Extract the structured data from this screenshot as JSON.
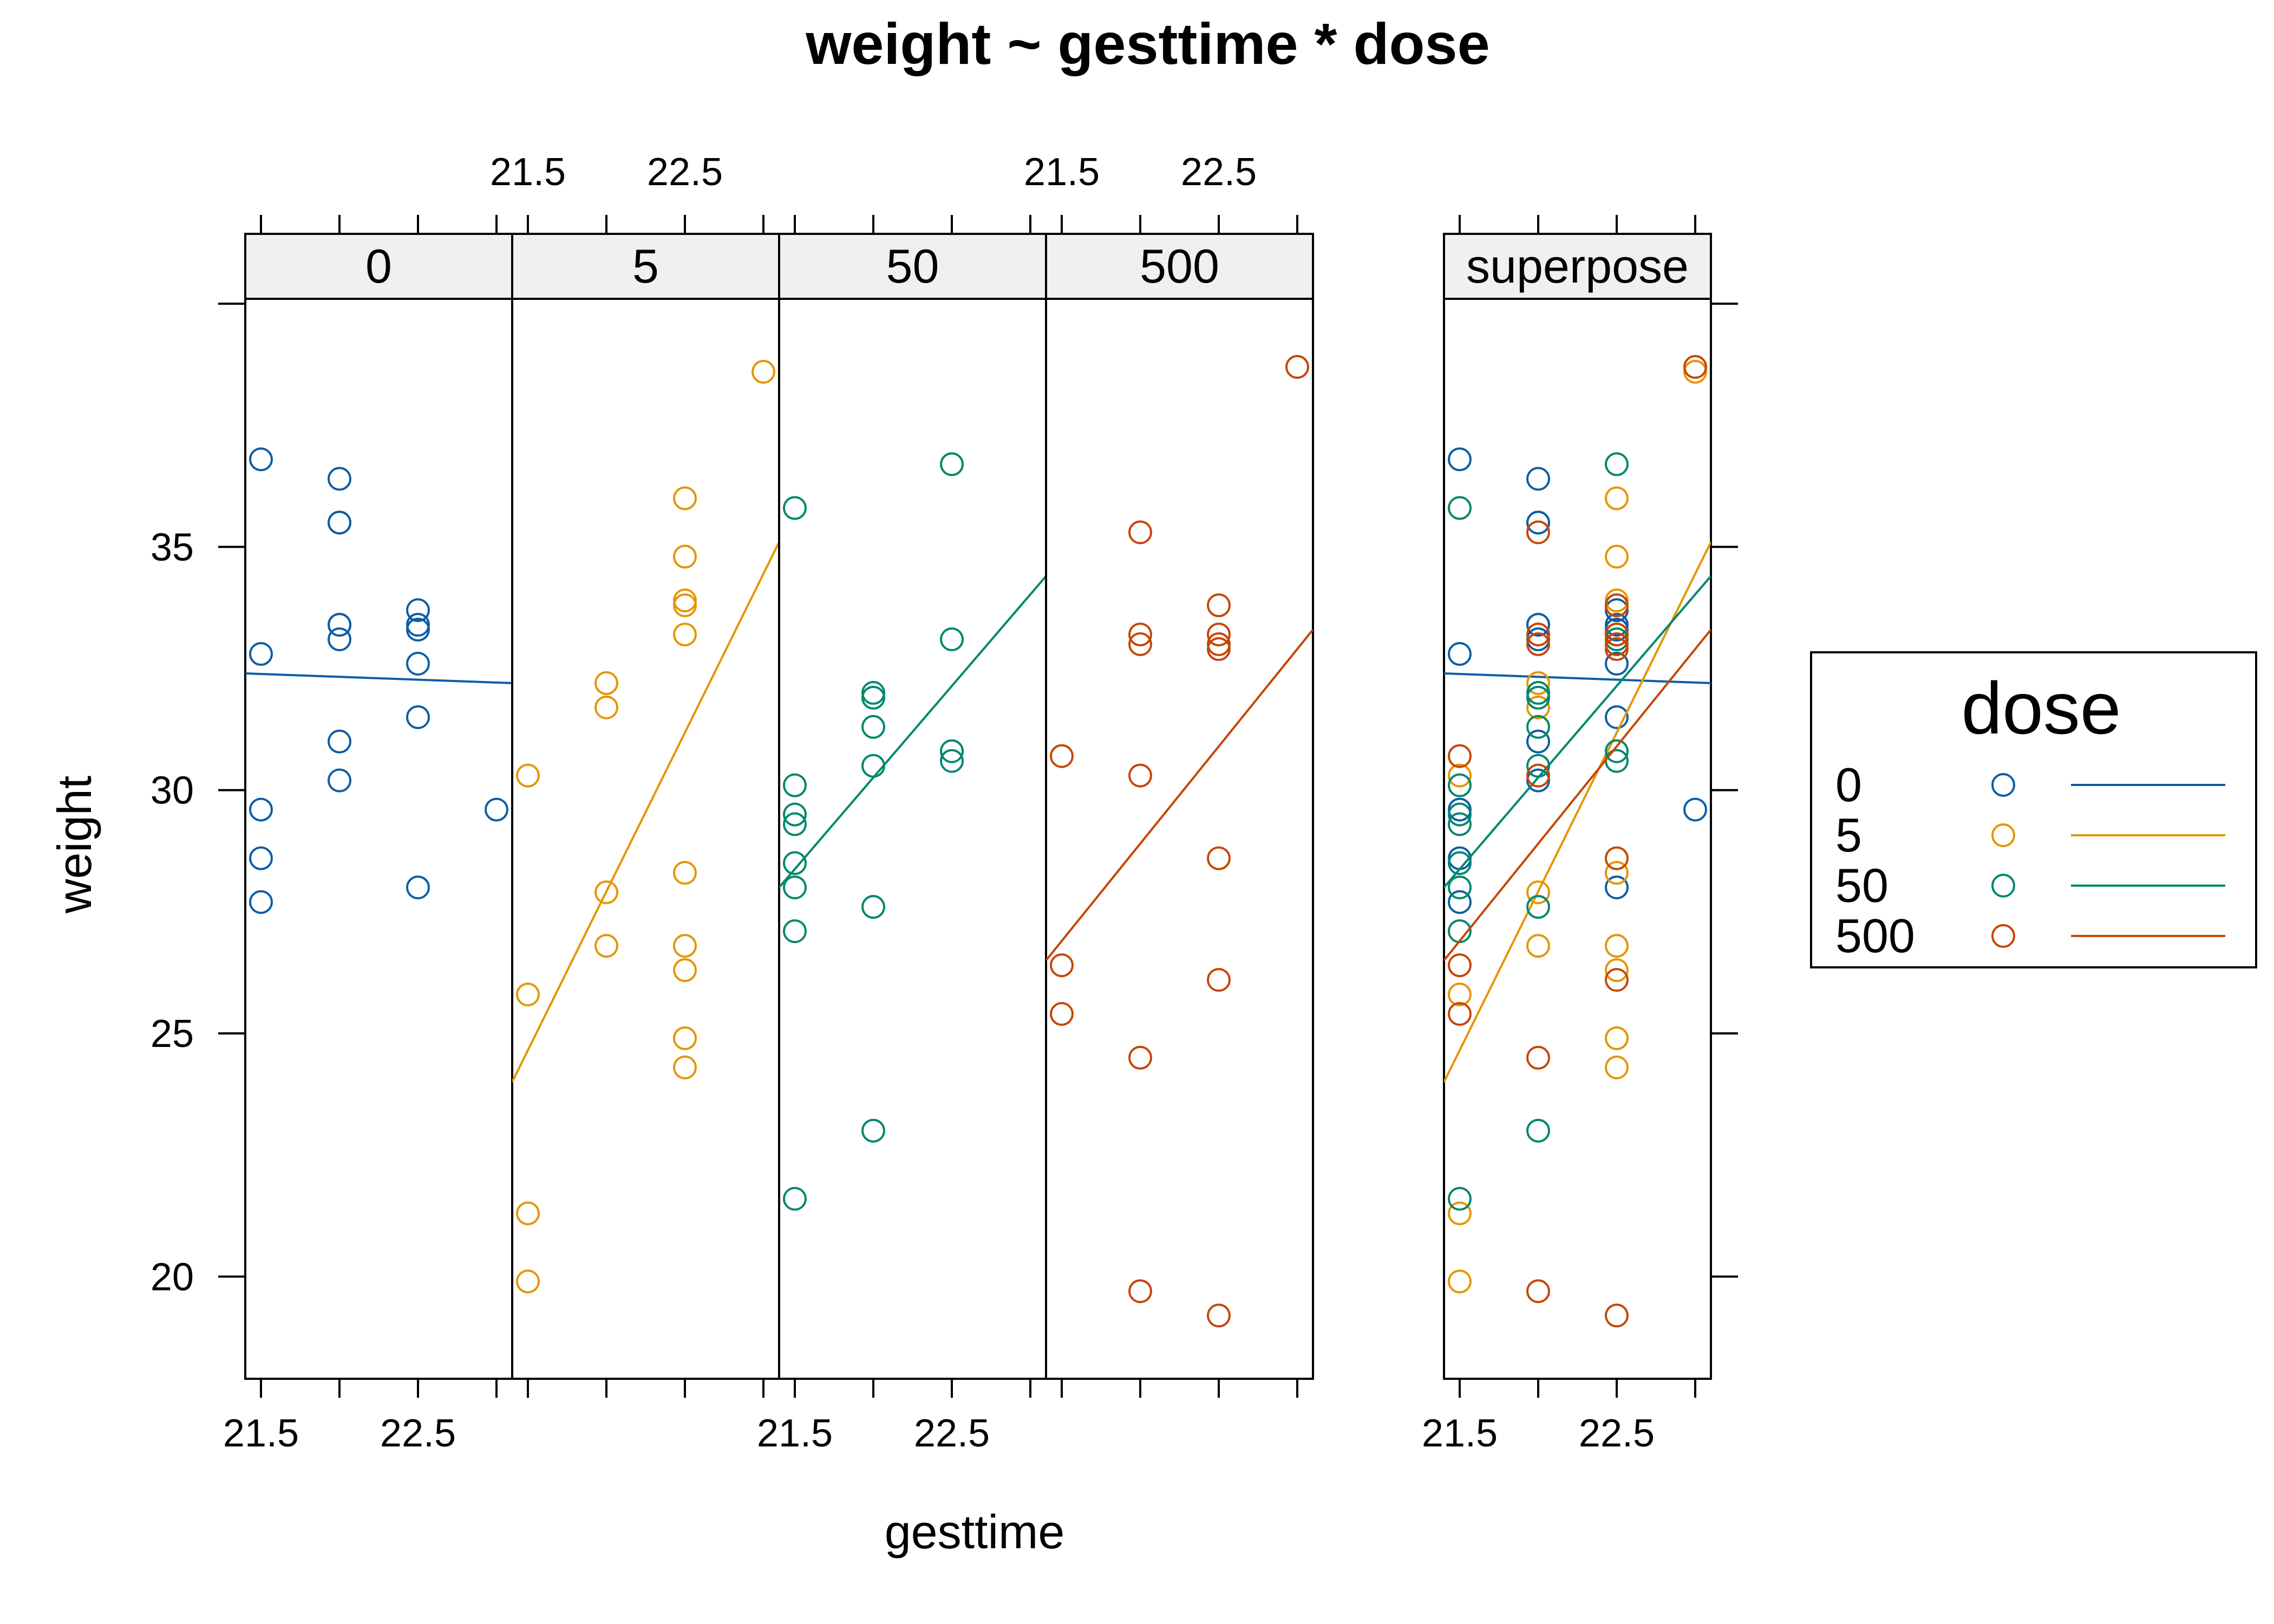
{
  "chart_data": {
    "type": "scatter",
    "title": "weight ~ gesttime * dose",
    "xlabel": "gesttime",
    "ylabel": "weight",
    "xlim": [
      21.4,
      23.1
    ],
    "ylim": [
      17.9,
      40.1
    ],
    "x_ticks": [
      21.5,
      22,
      22.5,
      23
    ],
    "x_tick_labels": [
      "21.5",
      "22.5"
    ],
    "y_ticks": [
      20,
      25,
      30,
      35,
      40
    ],
    "y_tick_labels": [
      "20",
      "25",
      "30",
      "35"
    ],
    "panels": [
      "0",
      "5",
      "50",
      "500",
      "superpose"
    ],
    "legend": {
      "title": "dose",
      "position": "right"
    },
    "series": [
      {
        "name": "0",
        "color": "#0c5da5",
        "fit_line": [
          [
            21.4,
            32.4
          ],
          [
            23.1,
            32.2
          ]
        ],
        "points": [
          [
            21.5,
            36.8
          ],
          [
            21.5,
            32.8
          ],
          [
            21.5,
            29.6
          ],
          [
            21.5,
            28.6
          ],
          [
            21.5,
            27.7
          ],
          [
            22.0,
            36.4
          ],
          [
            22.0,
            35.5
          ],
          [
            22.0,
            35.5
          ],
          [
            22.0,
            33.4
          ],
          [
            22.0,
            33.4
          ],
          [
            22.0,
            33.1
          ],
          [
            22.0,
            31.0
          ],
          [
            22.0,
            30.2
          ],
          [
            22.5,
            33.7
          ],
          [
            22.5,
            33.4
          ],
          [
            22.5,
            33.3
          ],
          [
            22.5,
            32.6
          ],
          [
            22.5,
            31.5
          ],
          [
            22.5,
            28.0
          ],
          [
            23.0,
            29.6
          ]
        ]
      },
      {
        "name": "5",
        "color": "#e69500",
        "fit_line": [
          [
            21.4,
            24.0
          ],
          [
            23.1,
            35.1
          ]
        ],
        "points": [
          [
            21.5,
            30.3
          ],
          [
            21.5,
            25.8
          ],
          [
            21.5,
            21.3
          ],
          [
            21.5,
            19.9
          ],
          [
            22.0,
            32.2
          ],
          [
            22.0,
            31.7
          ],
          [
            22.0,
            27.9
          ],
          [
            22.0,
            26.8
          ],
          [
            22.5,
            36.0
          ],
          [
            22.5,
            34.8
          ],
          [
            22.5,
            33.9
          ],
          [
            22.5,
            33.8
          ],
          [
            22.5,
            33.2
          ],
          [
            22.5,
            28.3
          ],
          [
            22.5,
            26.8
          ],
          [
            22.5,
            26.3
          ],
          [
            22.5,
            24.9
          ],
          [
            22.5,
            24.3
          ],
          [
            23.0,
            38.6
          ]
        ]
      },
      {
        "name": "50",
        "color": "#00876c",
        "fit_line": [
          [
            21.4,
            28.0
          ],
          [
            23.1,
            34.4
          ]
        ],
        "points": [
          [
            21.5,
            35.8
          ],
          [
            21.5,
            30.1
          ],
          [
            21.5,
            29.5
          ],
          [
            21.5,
            29.3
          ],
          [
            21.5,
            28.5
          ],
          [
            21.5,
            28.0
          ],
          [
            21.5,
            27.1
          ],
          [
            21.5,
            21.6
          ],
          [
            22.0,
            32.0
          ],
          [
            22.0,
            31.9
          ],
          [
            22.0,
            31.3
          ],
          [
            22.0,
            30.5
          ],
          [
            22.0,
            27.6
          ],
          [
            22.0,
            23.0
          ],
          [
            22.5,
            36.7
          ],
          [
            22.5,
            33.1
          ],
          [
            22.5,
            30.8
          ],
          [
            22.5,
            30.6
          ]
        ]
      },
      {
        "name": "500",
        "color": "#c64600",
        "fit_line": [
          [
            21.4,
            26.5
          ],
          [
            23.1,
            33.3
          ]
        ],
        "points": [
          [
            21.5,
            30.7
          ],
          [
            21.5,
            26.4
          ],
          [
            21.5,
            25.4
          ],
          [
            22.0,
            35.3
          ],
          [
            22.0,
            33.2
          ],
          [
            22.0,
            33.0
          ],
          [
            22.0,
            30.3
          ],
          [
            22.0,
            24.5
          ],
          [
            22.0,
            19.7
          ],
          [
            22.5,
            33.8
          ],
          [
            22.5,
            33.2
          ],
          [
            22.5,
            33.0
          ],
          [
            22.5,
            32.9
          ],
          [
            22.5,
            28.6
          ],
          [
            22.5,
            26.1
          ],
          [
            22.5,
            19.2
          ],
          [
            23.0,
            38.7
          ]
        ]
      }
    ]
  }
}
